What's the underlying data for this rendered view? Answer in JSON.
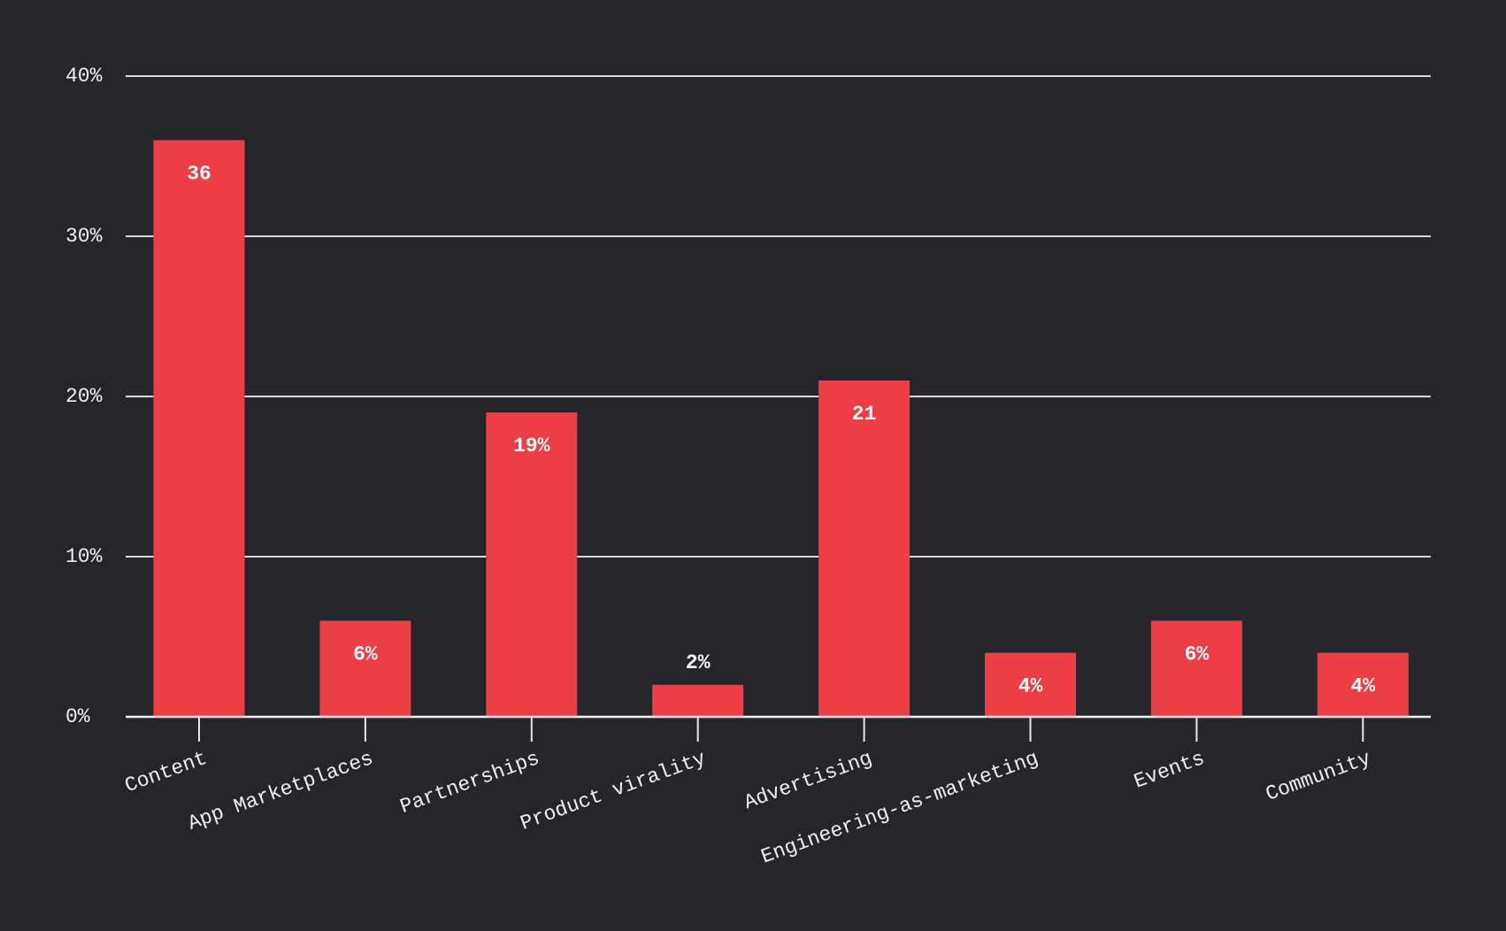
{
  "chart_data": {
    "type": "bar",
    "categories": [
      "Content",
      "App Marketplaces",
      "Partnerships",
      "Product virality",
      "Advertising",
      "Engineering-as-marketing",
      "Events",
      "Community"
    ],
    "values": [
      36,
      6,
      19,
      2,
      21,
      4,
      6,
      4
    ],
    "value_labels": [
      "36",
      "6%",
      "19%",
      "2%",
      "21",
      "4%",
      "6%",
      "4%"
    ],
    "color": "#ec3e44",
    "ylim": [
      0,
      40
    ],
    "yticks": [
      {
        "value": 0,
        "label": "0%"
      },
      {
        "value": 10,
        "label": "10%"
      },
      {
        "value": 20,
        "label": "20%"
      },
      {
        "value": 30,
        "label": "30%"
      },
      {
        "value": 40,
        "label": "40%"
      }
    ],
    "grid": true
  }
}
